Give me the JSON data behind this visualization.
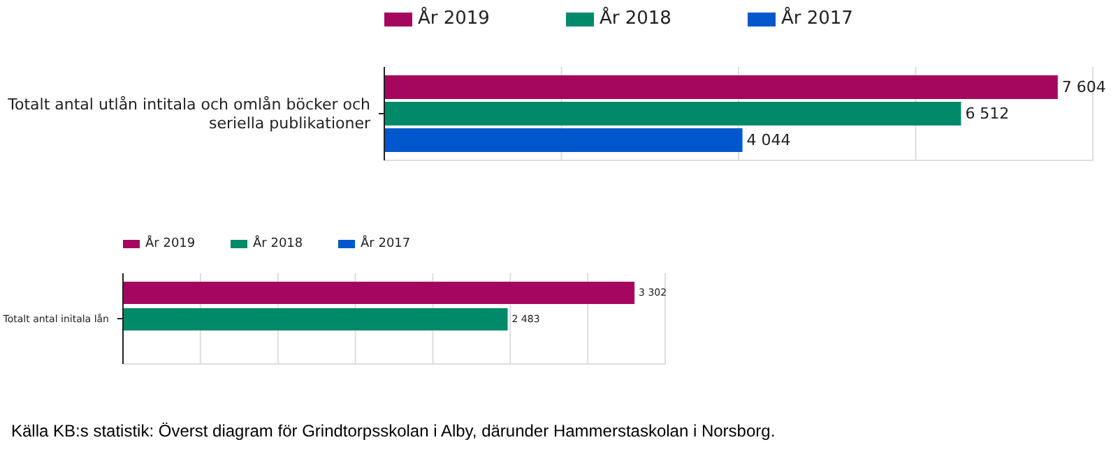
{
  "chart_data": [
    {
      "type": "bar",
      "orientation": "horizontal",
      "categories": [
        "Totalt antal utlån intitala och omlån böcker och seriella publikationer"
      ],
      "series": [
        {
          "name": "År 2019",
          "color": "#a5075f",
          "values": [
            7604
          ],
          "value_labels": [
            "7 604"
          ]
        },
        {
          "name": "År 2018",
          "color": "#008a6a",
          "values": [
            6512
          ],
          "value_labels": [
            "6 512"
          ]
        },
        {
          "name": "År 2017",
          "color": "#0058cc",
          "values": [
            4044
          ],
          "value_labels": [
            "4 044"
          ]
        }
      ],
      "xlim": [
        0,
        8000
      ],
      "tick_labels": "y",
      "grid": "x",
      "legend": "top"
    },
    {
      "type": "bar",
      "orientation": "horizontal",
      "categories": [
        "Totalt antal initala lån"
      ],
      "series": [
        {
          "name": "År 2019",
          "color": "#a5075f",
          "values": [
            3302
          ],
          "value_labels": [
            "3 302"
          ]
        },
        {
          "name": "År 2018",
          "color": "#008a6a",
          "values": [
            2483
          ],
          "value_labels": [
            "2 483"
          ]
        },
        {
          "name": "År 2017",
          "color": "#0058cc",
          "values": [
            null
          ],
          "value_labels": [
            null
          ]
        }
      ],
      "xlim": [
        0,
        3500
      ],
      "tick_labels": "y",
      "grid": "x",
      "legend": "top",
      "annotations": [
        "Källa KB:s statistik: Överst diagram för Grindtorpsskolan i Alby, därunder Hammerstaskolan i Norsborg."
      ]
    }
  ]
}
